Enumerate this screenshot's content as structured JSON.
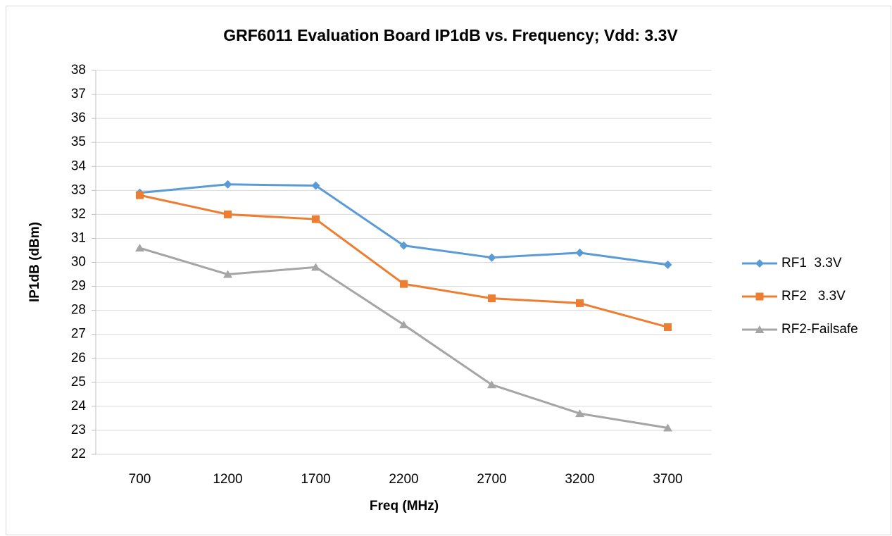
{
  "chart_data": {
    "type": "line",
    "title": "GRF6011 Evaluation Board IP1dB vs. Frequency; Vdd: 3.3V",
    "x_label": "Freq (MHz)",
    "y_label": "IP1dB (dBm)",
    "categories": [
      "700",
      "1200",
      "1700",
      "2200",
      "2700",
      "3200",
      "3700"
    ],
    "series": [
      {
        "name": "RF1  3.3V",
        "color": "#5b9bd5",
        "marker": "diamond",
        "values": [
          32.9,
          33.25,
          33.2,
          30.7,
          30.2,
          30.4,
          29.9
        ]
      },
      {
        "name": "RF2   3.3V",
        "color": "#ed7d31",
        "marker": "square",
        "values": [
          32.8,
          32.0,
          31.8,
          29.1,
          28.5,
          28.3,
          27.3
        ]
      },
      {
        "name": "RF2-Failsafe",
        "color": "#a5a5a5",
        "marker": "triangle",
        "values": [
          30.6,
          29.5,
          29.8,
          27.4,
          24.9,
          23.7,
          23.1
        ]
      }
    ],
    "ylim": [
      22,
      38
    ],
    "yticks": [
      22,
      23,
      24,
      25,
      26,
      27,
      28,
      29,
      30,
      31,
      32,
      33,
      34,
      35,
      36,
      37,
      38
    ],
    "grid": true,
    "legend": "right"
  }
}
